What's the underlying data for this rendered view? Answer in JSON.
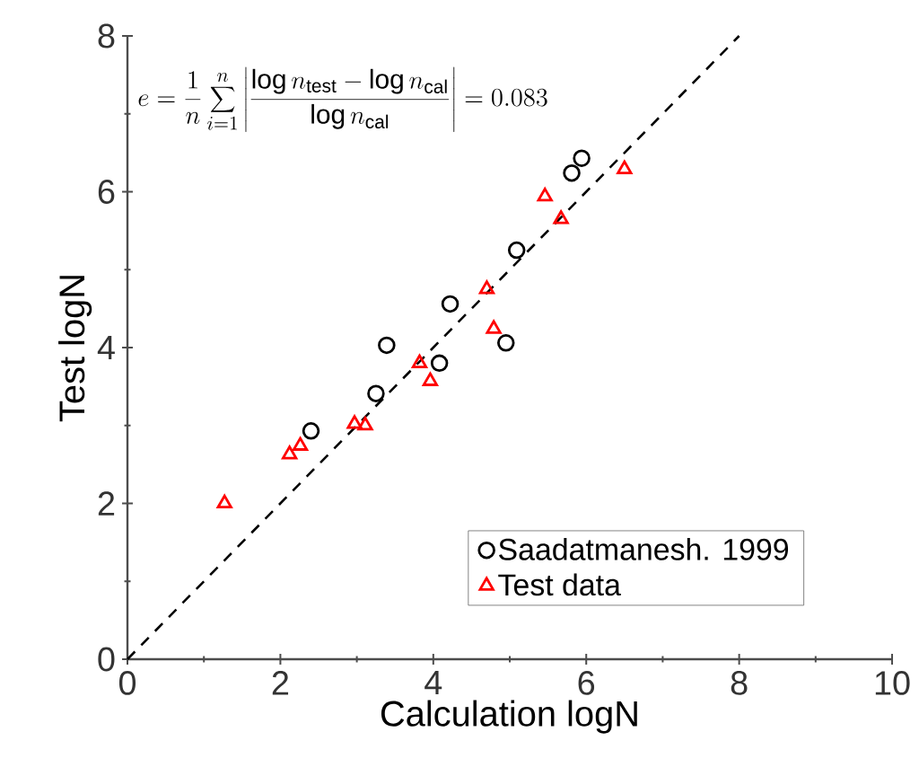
{
  "chart_data": {
    "type": "scatter",
    "xlabel": "Calculation logN",
    "ylabel": "Test logN",
    "xlim": [
      0,
      10
    ],
    "ylim": [
      0,
      8
    ],
    "xticks": [
      0,
      2,
      4,
      6,
      8,
      10
    ],
    "yticks": [
      0,
      2,
      4,
      6,
      8
    ],
    "grid": false,
    "legend": "bottom right",
    "annotations": [
      "e=\\frac{1}{n}\\sum_{i=1}^{n}\\left|\\frac{\\log n_{\\mathrm{test}}-\\log n_{\\mathrm{cal}}}{\\log n_{\\mathrm{cal}}}\\right|=0.083"
    ],
    "series": [
      {
        "name": "Saadatmanesh. 1999",
        "color": "#000000",
        "marker": "circle",
        "x": [
          2.4,
          3.25,
          3.39,
          4.08,
          4.22,
          4.95,
          5.09,
          5.81,
          5.94
        ],
        "values": [
          2.93,
          3.41,
          4.03,
          3.8,
          4.56,
          4.06,
          5.25,
          6.24,
          6.43
        ]
      },
      {
        "name": "Test data",
        "color": "#ff0000",
        "marker": "triangle",
        "x": [
          1.27,
          2.12,
          2.26,
          2.97,
          3.11,
          3.82,
          3.96,
          4.7,
          4.79,
          5.46,
          5.67,
          6.5
        ],
        "values": [
          2.0,
          2.63,
          2.74,
          3.02,
          3.0,
          3.8,
          3.57,
          4.75,
          4.24,
          5.94,
          5.65,
          6.29
        ]
      },
      {
        "type": "line",
        "color": "#000000",
        "line_style": "dashed",
        "marker": "none",
        "x": [
          0,
          8
        ],
        "values": [
          0,
          8
        ]
      }
    ]
  }
}
